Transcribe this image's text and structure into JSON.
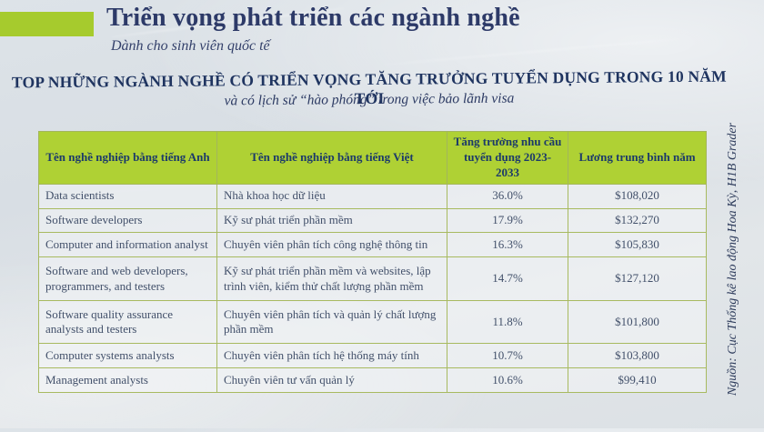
{
  "slide": {
    "title": "Triển vọng phát triển các ngành nghề",
    "subtitle": "Dành cho sinh viên quốc tế",
    "heading": "TOP NHỮNG NGÀNH NGHỀ CÓ TRIỂN VỌNG TĂNG TRƯỞNG TUYỂN DỤNG TRONG 10 NĂM TỚI",
    "subheading": "và có lịch sử “hào phóng” trong việc bảo lãnh visa",
    "source_note": "Nguồn: Cục Thống kê lao động Hoa Kỳ,  H1B Grader"
  },
  "table": {
    "headers": [
      "Tên nghề nghiệp bằng tiếng Anh",
      "Tên nghề nghiệp bằng tiếng Việt",
      "Tăng trưởng nhu cầu tuyển dụng 2023-2033",
      "Lương trung bình năm"
    ],
    "rows": [
      {
        "en": "Data scientists",
        "vi": "Nhà khoa học dữ liệu",
        "growth": "36.0%",
        "salary": "$108,020"
      },
      {
        "en": "Software developers",
        "vi": "Kỹ sư phát triển phần mềm",
        "growth": "17.9%",
        "salary": "$132,270"
      },
      {
        "en": "Computer and information analyst",
        "vi": "Chuyên viên phân tích công nghệ thông tin",
        "growth": "16.3%",
        "salary": "$105,830"
      },
      {
        "en": "Software and web developers, programmers, and testers",
        "vi": "Kỹ sư phát triển phần mềm và websites, lập trình viên, kiểm thử chất lượng phần mềm",
        "growth": "14.7%",
        "salary": "$127,120"
      },
      {
        "en": "Software quality assurance analysts and testers",
        "vi": "Chuyên viên phân tích và quản lý chất lượng phần mềm",
        "growth": "11.8%",
        "salary": "$101,800"
      },
      {
        "en": "Computer systems analysts",
        "vi": "Chuyên viên phân tích hệ thống máy tính",
        "growth": "10.7%",
        "salary": "$103,800"
      },
      {
        "en": "Management analysts",
        "vi": "Chuyên viên tư vấn quản lý",
        "growth": "10.6%",
        "salary": "$99,410"
      }
    ]
  },
  "colors": {
    "accent_green": "#a6cb2d",
    "table_header_green": "#afd134",
    "title_navy": "#2d3a68",
    "heading_navy": "#1f3460",
    "body_text": "#42506a",
    "table_border": "#a3b65c",
    "background": "#dce1e5"
  },
  "chart_data": {
    "type": "table",
    "title": "TOP NHỮNG NGÀNH NGHỀ CÓ TRIỂN VỌNG TĂNG TRƯỞNG TUYỂN DỤNG TRONG 10 NĂM TỚI",
    "columns": [
      "Tên nghề nghiệp bằng tiếng Anh",
      "Tên nghề nghiệp bằng tiếng Việt",
      "Tăng trưởng nhu cầu tuyển dụng 2023-2033",
      "Lương trung bình năm"
    ],
    "rows": [
      [
        "Data scientists",
        "Nhà khoa học dữ liệu",
        "36.0%",
        "$108,020"
      ],
      [
        "Software developers",
        "Kỹ sư phát triển phần mềm",
        "17.9%",
        "$132,270"
      ],
      [
        "Computer and information analyst",
        "Chuyên viên phân tích công nghệ thông tin",
        "16.3%",
        "$105,830"
      ],
      [
        "Software and web developers, programmers, and testers",
        "Kỹ sư phát triển phần mềm và websites, lập trình viên, kiểm thử chất lượng phần mềm",
        "14.7%",
        "$127,120"
      ],
      [
        "Software quality assurance analysts and testers",
        "Chuyên viên phân tích và quản lý chất lượng phần mềm",
        "11.8%",
        "$101,800"
      ],
      [
        "Computer systems analysts",
        "Chuyên viên phân tích hệ thống máy tính",
        "10.7%",
        "$103,800"
      ],
      [
        "Management analysts",
        "Chuyên viên tư vấn quản lý",
        "10.6%",
        "$99,410"
      ]
    ],
    "growth_values": [
      36.0,
      17.9,
      16.3,
      14.7,
      11.8,
      10.7,
      10.6
    ],
    "salary_values": [
      108020,
      132270,
      105830,
      127120,
      101800,
      103800,
      99410
    ]
  }
}
